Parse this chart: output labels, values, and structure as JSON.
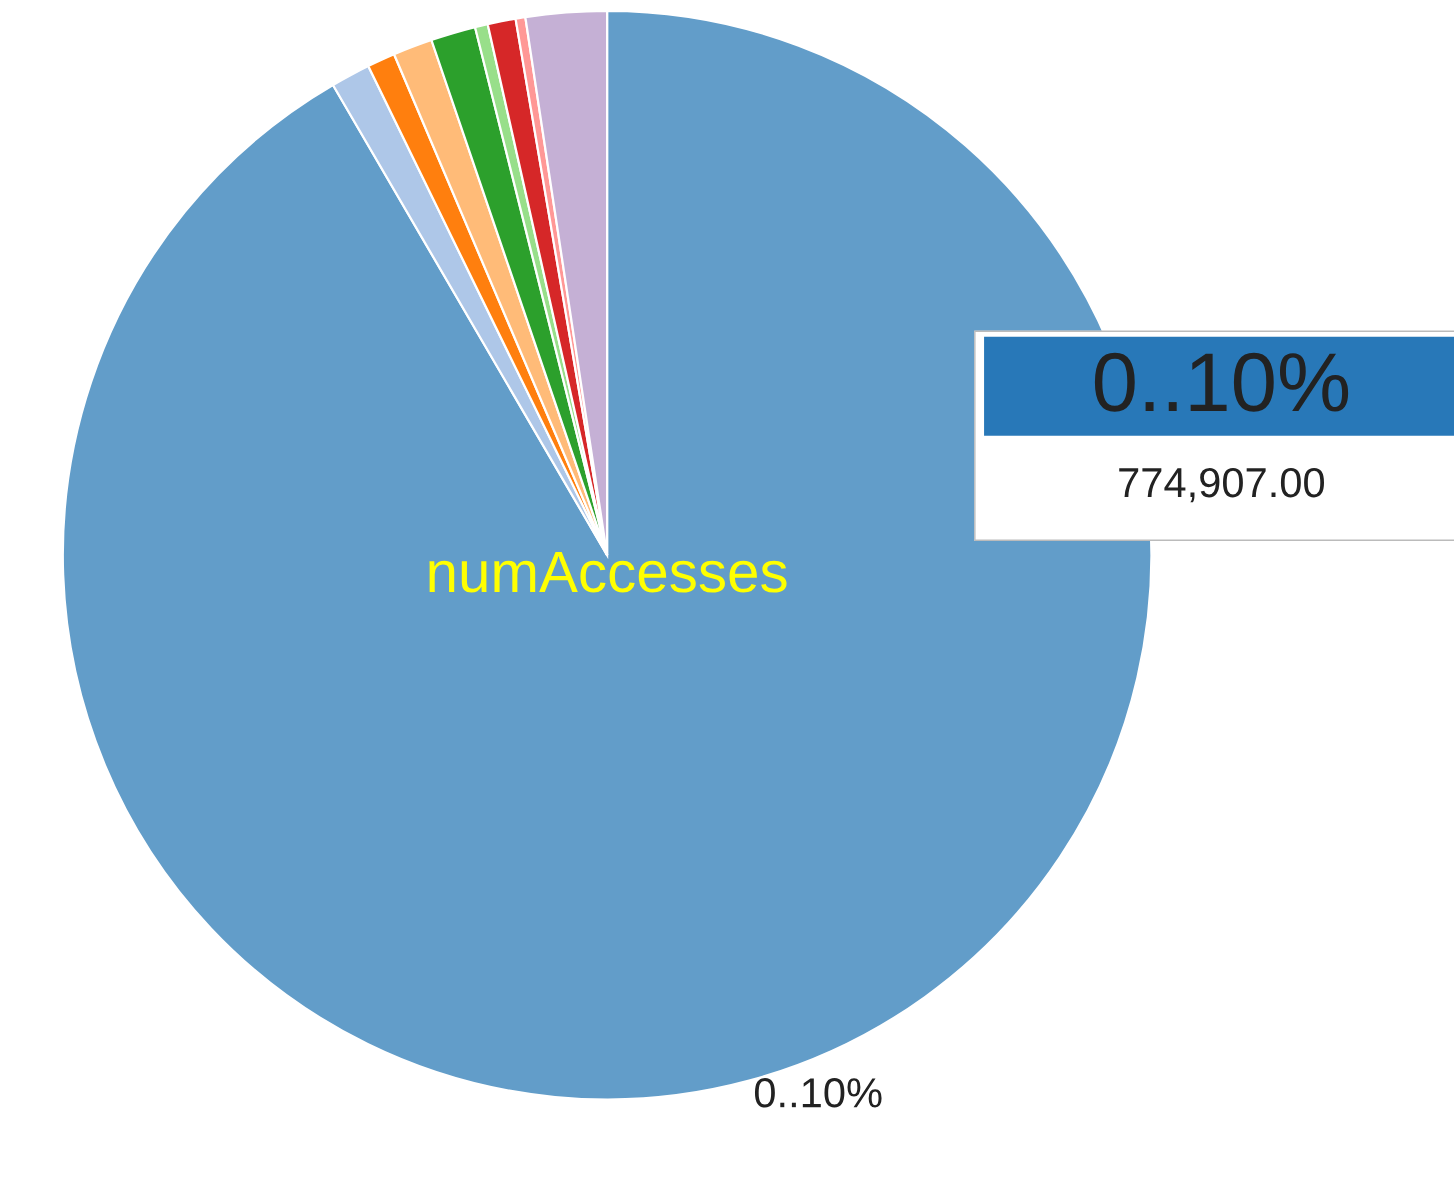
{
  "chart_data": {
    "type": "pie",
    "title": "numAccesses",
    "categories": [
      "0..10%",
      null,
      null,
      null,
      null,
      null,
      null,
      null,
      null
    ],
    "values": [
      91.6,
      1.17,
      0.83,
      1.17,
      1.33,
      0.38,
      0.83,
      0.29,
      2.4
    ],
    "colors": [
      "#629dc9",
      "#aec7e8",
      "#ff7f0e",
      "#ffbb78",
      "#2ca02c",
      "#98df8a",
      "#d62728",
      "#ff9896",
      "#c5b0d5"
    ],
    "annotations": [
      "0..10%",
      "774,907.00"
    ]
  }
}
